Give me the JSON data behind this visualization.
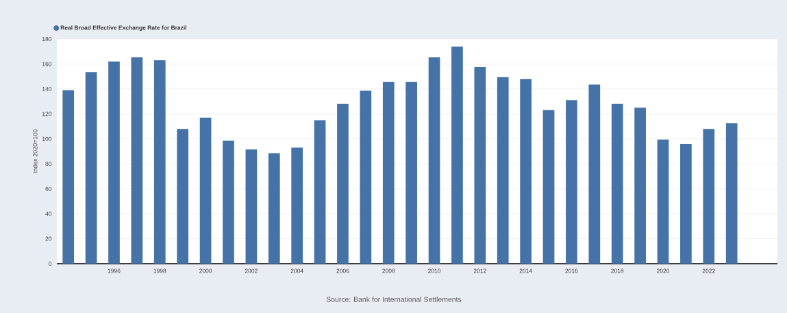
{
  "chart_data": {
    "type": "bar",
    "ylabel": "Index 2020=100",
    "x": [
      1994,
      1995,
      1996,
      1997,
      1998,
      1999,
      2000,
      2001,
      2002,
      2003,
      2004,
      2005,
      2006,
      2007,
      2008,
      2009,
      2010,
      2011,
      2012,
      2013,
      2014,
      2015,
      2016,
      2017,
      2018,
      2019,
      2020,
      2021,
      2022,
      2023
    ],
    "series": [
      {
        "name": "Real Broad Effective Exchange Rate for Brazil",
        "color": "#4572a7",
        "values": [
          139,
          153.5,
          162,
          165.5,
          163,
          108,
          117,
          98.5,
          91.5,
          88.5,
          93,
          115,
          128,
          138.5,
          145.5,
          145.5,
          165.5,
          174,
          157.5,
          149.5,
          148,
          123,
          131,
          143.5,
          128,
          125,
          99.5,
          96,
          108,
          112.5
        ]
      }
    ],
    "xlim": [
      1993.5,
      2025
    ],
    "xticks": [
      1996,
      1998,
      2000,
      2002,
      2004,
      2006,
      2008,
      2010,
      2012,
      2014,
      2016,
      2018,
      2020,
      2022
    ],
    "ylim": [
      0,
      180
    ],
    "yticks": [
      0,
      20,
      40,
      60,
      80,
      100,
      120,
      140,
      160,
      180
    ],
    "grid": "y",
    "legend": "top left",
    "annotations": [
      "Source: Bank for International Settlements"
    ]
  }
}
